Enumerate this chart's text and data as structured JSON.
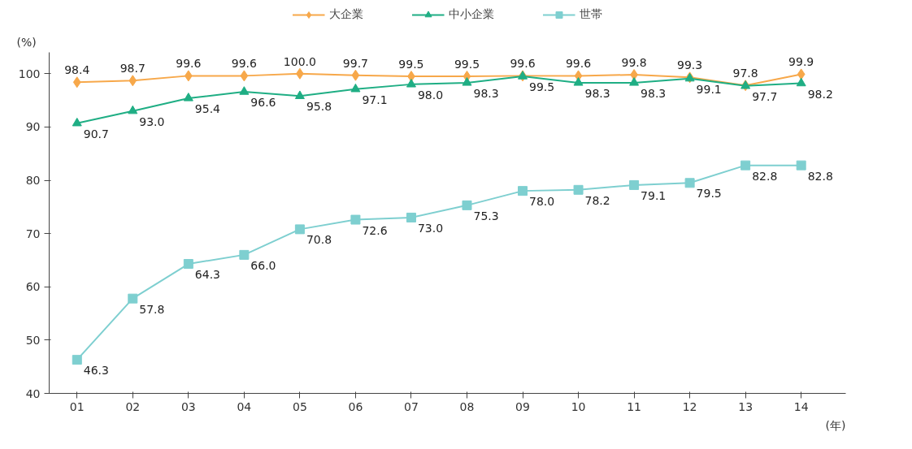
{
  "chart_data": {
    "type": "line",
    "ylabel": "(%)",
    "xlabel": "(年)",
    "categories": [
      "01",
      "02",
      "03",
      "04",
      "05",
      "06",
      "07",
      "08",
      "09",
      "10",
      "11",
      "12",
      "13",
      "14"
    ],
    "series": [
      {
        "name": "大企業",
        "color": "#f7a84a",
        "marker": "diamond",
        "values": [
          98.4,
          98.7,
          99.6,
          99.6,
          100.0,
          99.7,
          99.5,
          99.5,
          99.6,
          99.6,
          99.8,
          99.3,
          97.8,
          99.9
        ],
        "value_labels": [
          "98.4",
          "98.7",
          "99.6",
          "99.6",
          "100.0",
          "99.7",
          "99.5",
          "99.5",
          "99.6",
          "99.6",
          "99.8",
          "99.3",
          "97.8",
          "99.9"
        ]
      },
      {
        "name": "中小企業",
        "color": "#1fae84",
        "marker": "triangle",
        "values": [
          90.7,
          93.0,
          95.4,
          96.6,
          95.8,
          97.1,
          98.0,
          98.3,
          99.5,
          98.3,
          98.3,
          99.1,
          97.7,
          98.2
        ],
        "value_labels": [
          "90.7",
          "93.0",
          "95.4",
          "96.6",
          "95.8",
          "97.1",
          "98.0",
          "98.3",
          "99.5",
          "98.3",
          "98.3",
          "99.1",
          "97.7",
          "98.2"
        ]
      },
      {
        "name": "世帯",
        "color": "#7ecfd0",
        "marker": "square",
        "values": [
          46.3,
          57.8,
          64.3,
          66.0,
          70.8,
          72.6,
          73.0,
          75.3,
          78.0,
          78.2,
          79.1,
          79.5,
          82.8,
          82.8
        ],
        "value_labels": [
          "46.3",
          "57.8",
          "64.3",
          "66.0",
          "70.8",
          "72.6",
          "73.0",
          "75.3",
          "78.0",
          "78.2",
          "79.1",
          "79.5",
          "82.8",
          "82.8"
        ]
      }
    ],
    "ylim": [
      40,
      104
    ],
    "yticks": [
      40,
      50,
      60,
      70,
      80,
      90,
      100
    ],
    "grid": false,
    "legend": "top",
    "line_style": "solid"
  }
}
